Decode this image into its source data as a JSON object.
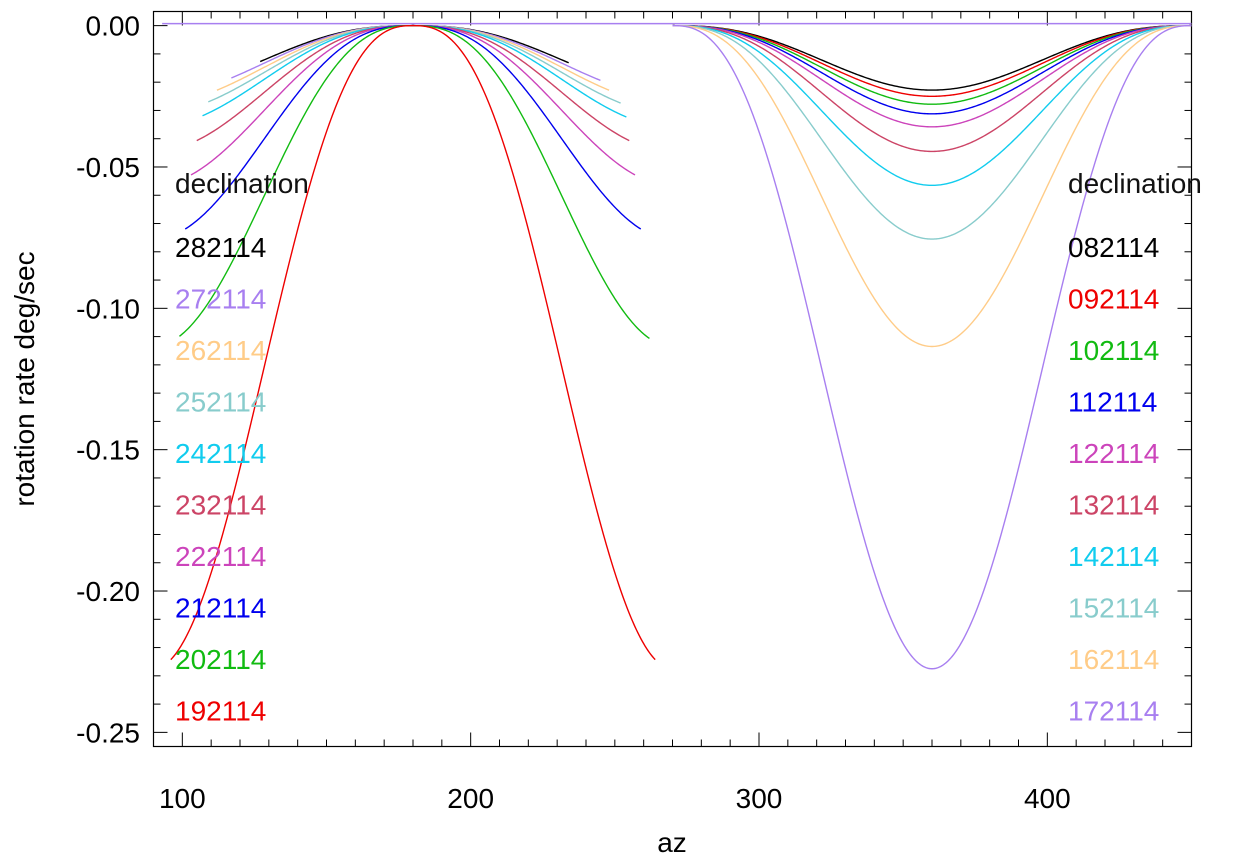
{
  "chart_data": {
    "type": "line",
    "xlabel": "az",
    "ylabel": "rotation rate deg/sec",
    "xlim": [
      90,
      450
    ],
    "ylim": [
      -0.255,
      0.005
    ],
    "x_ticks": [
      100,
      200,
      300,
      400
    ],
    "x_tick_labels": [
      "100",
      "200",
      "300",
      "400"
    ],
    "y_ticks": [
      0.0,
      -0.05,
      -0.1,
      -0.15,
      -0.2,
      -0.25
    ],
    "y_tick_labels": [
      "0.00",
      "-0.05",
      "-0.10",
      "-0.15",
      "-0.20",
      "-0.25"
    ],
    "grid": false,
    "legends": [
      {
        "placement": "left",
        "title": "declination",
        "entries": [
          {
            "label": "282114",
            "color": "#000000"
          },
          {
            "label": "272114",
            "color": "#a87ff0"
          },
          {
            "label": "262114",
            "color": "#ffcc88"
          },
          {
            "label": "252114",
            "color": "#88cccc"
          },
          {
            "label": "242114",
            "color": "#11ccee"
          },
          {
            "label": "232114",
            "color": "#cc4466"
          },
          {
            "label": "222114",
            "color": "#cc44bb"
          },
          {
            "label": "212114",
            "color": "#0000ee"
          },
          {
            "label": "202114",
            "color": "#11bb11"
          },
          {
            "label": "192114",
            "color": "#ee0000"
          }
        ]
      },
      {
        "placement": "right",
        "title": "declination",
        "entries": [
          {
            "label": "082114",
            "color": "#000000"
          },
          {
            "label": "092114",
            "color": "#ee0000"
          },
          {
            "label": "102114",
            "color": "#11bb11"
          },
          {
            "label": "112114",
            "color": "#0000ee"
          },
          {
            "label": "122114",
            "color": "#cc44bb"
          },
          {
            "label": "132114",
            "color": "#cc4466"
          },
          {
            "label": "142114",
            "color": "#11ccee"
          },
          {
            "label": "152114",
            "color": "#88cccc"
          },
          {
            "label": "162114",
            "color": "#ffcc88"
          },
          {
            "label": "172114",
            "color": "#a87ff0"
          }
        ]
      }
    ],
    "series": [
      {
        "label": "282114",
        "color": "#000000",
        "x_range": [
          127,
          234
        ],
        "min_x": 180,
        "min_y": -0.0228
      },
      {
        "label": "272114",
        "color": "#a87ff0",
        "x_range": [
          117,
          245
        ],
        "min_x": 180,
        "min_y": -0.025
      },
      {
        "label": "262114",
        "color": "#ffcc88",
        "x_range": [
          112,
          248
        ],
        "min_x": 180,
        "min_y": -0.0278
      },
      {
        "label": "252114",
        "color": "#88cccc",
        "x_range": [
          109,
          252
        ],
        "min_x": 180,
        "min_y": -0.0312
      },
      {
        "label": "242114",
        "color": "#11ccee",
        "x_range": [
          107,
          254
        ],
        "min_x": 180,
        "min_y": -0.0358
      },
      {
        "label": "232114",
        "color": "#cc4466",
        "x_range": [
          105,
          255
        ],
        "min_x": 180,
        "min_y": -0.0445
      },
      {
        "label": "222114",
        "color": "#cc44bb",
        "x_range": [
          103,
          257
        ],
        "min_x": 180,
        "min_y": -0.0565
      },
      {
        "label": "212114",
        "color": "#0000ee",
        "x_range": [
          101,
          259
        ],
        "min_x": 180,
        "min_y": -0.0755
      },
      {
        "label": "202114",
        "color": "#11bb11",
        "x_range": [
          99,
          262
        ],
        "min_x": 180,
        "min_y": -0.1135
      },
      {
        "label": "192114",
        "color": "#ee0000",
        "x_range": [
          96,
          264
        ],
        "min_x": 180,
        "min_y": -0.2275
      },
      {
        "label": "082114",
        "color": "#000000",
        "x_range": [
          270,
          450
        ],
        "min_x": 360,
        "min_y": -0.0228
      },
      {
        "label": "092114",
        "color": "#ee0000",
        "x_range": [
          270,
          450
        ],
        "min_x": 360,
        "min_y": -0.025
      },
      {
        "label": "102114",
        "color": "#11bb11",
        "x_range": [
          270,
          450
        ],
        "min_x": 360,
        "min_y": -0.0278
      },
      {
        "label": "112114",
        "color": "#0000ee",
        "x_range": [
          270,
          450
        ],
        "min_x": 360,
        "min_y": -0.0312
      },
      {
        "label": "122114",
        "color": "#cc44bb",
        "x_range": [
          270,
          450
        ],
        "min_x": 360,
        "min_y": -0.0358
      },
      {
        "label": "132114",
        "color": "#cc4466",
        "x_range": [
          270,
          450
        ],
        "min_x": 360,
        "min_y": -0.0445
      },
      {
        "label": "142114",
        "color": "#11ccee",
        "x_range": [
          270,
          450
        ],
        "min_x": 360,
        "min_y": -0.0565
      },
      {
        "label": "152114",
        "color": "#88cccc",
        "x_range": [
          270,
          450
        ],
        "min_x": 360,
        "min_y": -0.0755
      },
      {
        "label": "162114",
        "color": "#ffcc88",
        "x_range": [
          270,
          450
        ],
        "min_x": 360,
        "min_y": -0.1135
      },
      {
        "label": "172114",
        "color": "#a87ff0",
        "x_range": [
          270,
          450
        ],
        "min_x": 360,
        "min_y": -0.2275
      }
    ]
  }
}
